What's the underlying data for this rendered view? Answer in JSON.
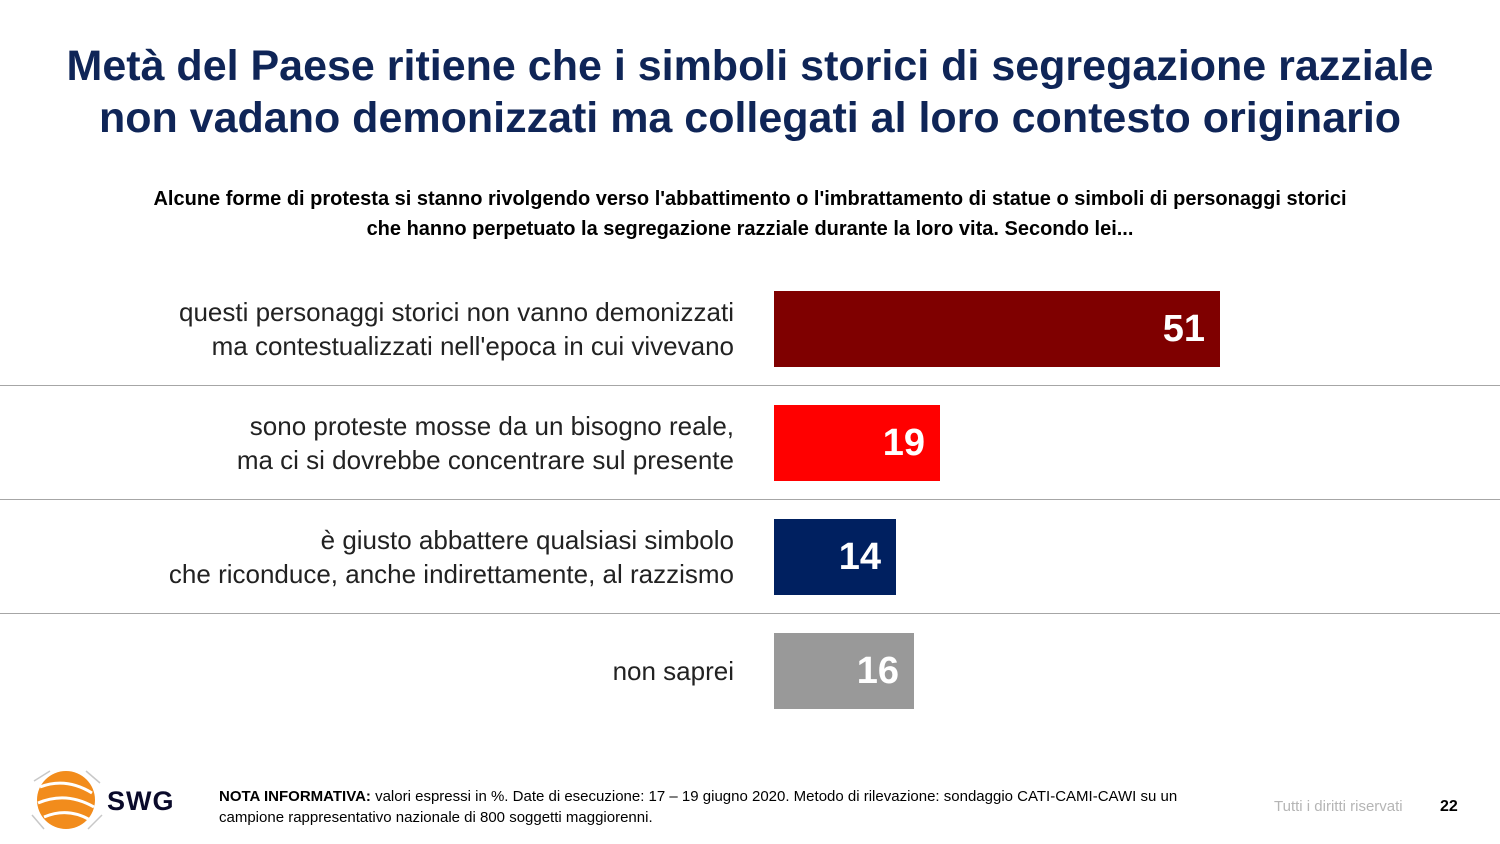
{
  "title": {
    "line1": "Metà del Paese ritiene che i simboli storici di segregazione razziale",
    "line2": "non vadano demonizzati ma collegati al loro contesto originario"
  },
  "subtitle": {
    "line1": "Alcune forme di protesta si stanno rivolgendo verso l'abbattimento o l'imbrattamento di statue o simboli di personaggi storici",
    "line2": "che hanno perpetuato la segregazione razziale durante la loro vita. Secondo lei..."
  },
  "chart_data": {
    "type": "bar",
    "orientation": "horizontal",
    "categories": [
      [
        "questi personaggi storici non vanno demonizzati",
        "ma contestualizzati nell'epoca in cui vivevano"
      ],
      [
        "sono proteste mosse da un bisogno reale,",
        "ma ci si dovrebbe concentrare sul presente"
      ],
      [
        "è giusto abbattere qualsiasi simbolo",
        "che riconduce, anche indirettamente, al razzismo"
      ],
      [
        "non saprei"
      ]
    ],
    "values": [
      51,
      19,
      14,
      16
    ],
    "colors": [
      "#7f0000",
      "#ff0000",
      "#002060",
      "#999999"
    ],
    "unit": "%"
  },
  "logo": {
    "text": "SWG"
  },
  "footer": {
    "nota_label": "NOTA INFORMATIVA:",
    "nota_text": " valori espressi in %. Date di esecuzione: 17 – 19 giugno 2020. Metodo di rilevazione: sondaggio CATI-CAMI-CAWI su un campione rappresentativo nazionale di 800 soggetti maggiorenni.",
    "rights": "Tutti i diritti riservati",
    "page": "22"
  }
}
